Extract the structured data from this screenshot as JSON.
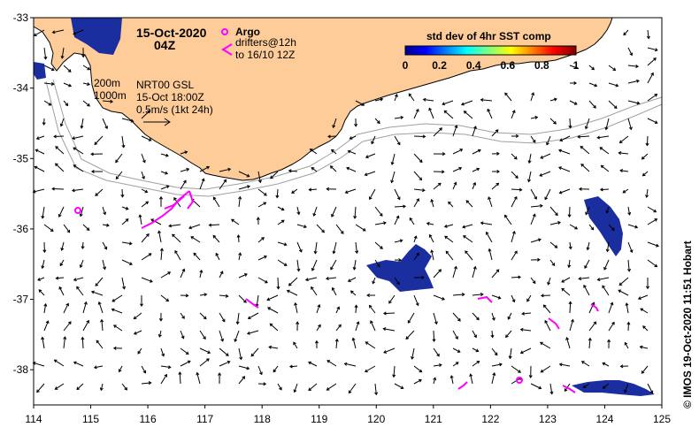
{
  "chart_data": {
    "type": "map",
    "title_date": "15-Oct-2020",
    "title_time": "04Z",
    "legend": {
      "argo_label": "Argo",
      "drifters_label": "drifters@12h",
      "drifters_label2": "to 16/10 12Z",
      "argo_color": "#ff00ff",
      "drifter_color": "#ff00ff"
    },
    "annotations": {
      "isobath_1": "200m",
      "isobath_2": "1000m",
      "product": "NRT00 GSL",
      "product_time": "15-Oct 18:00Z",
      "scale": "0.5m/s (1kt 24h)"
    },
    "colorbar": {
      "title": "std dev of 4hr SST comp",
      "ticks": [
        "0",
        "0.2",
        "0.4",
        "0.6",
        "0.8",
        "1"
      ],
      "min": 0,
      "max": 1
    },
    "xaxis": {
      "ticks": [
        114,
        115,
        116,
        117,
        118,
        119,
        120,
        121,
        122,
        123,
        124,
        125
      ],
      "range": [
        114,
        125
      ]
    },
    "yaxis": {
      "ticks": [
        -33,
        -34,
        -35,
        -36,
        -37,
        -38
      ],
      "range": [
        -38.5,
        -33
      ]
    },
    "credit": "© IMOS 19-Oct-2020 11:51 Hobart",
    "colors": {
      "land": "#fdcc99",
      "coast": "#000000",
      "isobath": "#a0a0a0",
      "sst_patch": "#1a2ea0"
    }
  }
}
